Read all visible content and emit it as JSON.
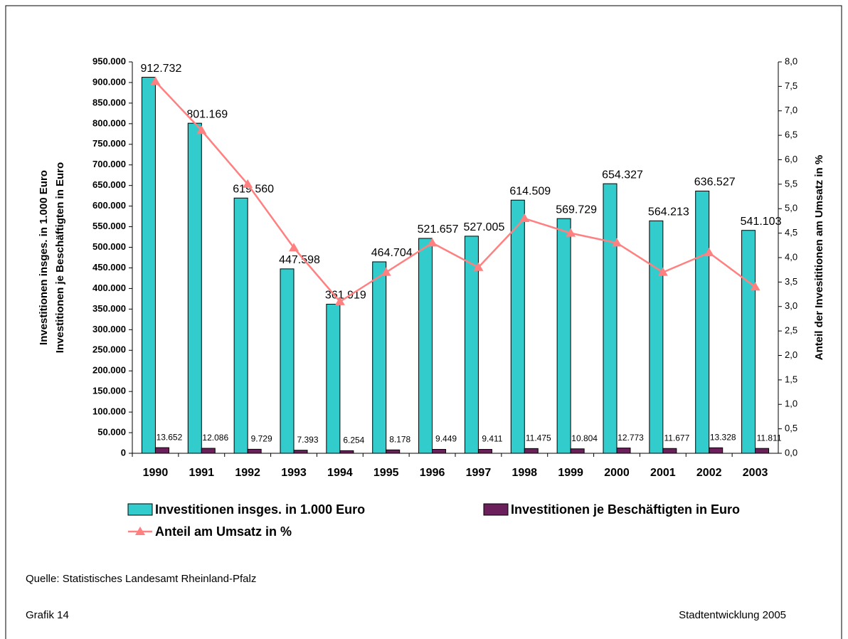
{
  "chart_data": {
    "type": "bar",
    "categories": [
      "1990",
      "1991",
      "1992",
      "1993",
      "1994",
      "1995",
      "1996",
      "1997",
      "1998",
      "1999",
      "2000",
      "2001",
      "2002",
      "2003"
    ],
    "series": [
      {
        "name": "Investitionen insges. in 1.000 Euro",
        "color": "#33cccc",
        "type": "bar",
        "values": [
          912732,
          801169,
          619560,
          447598,
          361919,
          464704,
          521657,
          527005,
          614509,
          569729,
          654327,
          564213,
          636527,
          541103
        ],
        "value_labels": [
          "912.732",
          "801.169",
          "619.560",
          "447.598",
          "361.919",
          "464.704",
          "521.657",
          "527.005",
          "614.509",
          "569.729",
          "654.327",
          "564.213",
          "636.527",
          "541.103"
        ]
      },
      {
        "name": "Investitionen je Beschäftigten in Euro",
        "color": "#6b1f5b",
        "type": "bar",
        "values": [
          13652,
          12086,
          9729,
          7393,
          6254,
          8178,
          9449,
          9411,
          11475,
          10804,
          12773,
          11677,
          13328,
          11811
        ],
        "value_labels": [
          "13.652",
          "12.086",
          "9.729",
          "7.393",
          "6.254",
          "8.178",
          "9.449",
          "9.411",
          "11.475",
          "10.804",
          "12.773",
          "11.677",
          "13.328",
          "11.811"
        ]
      },
      {
        "name": "Anteil am Umsatz in %",
        "color": "#ff8080",
        "type": "line",
        "axis": "y2",
        "values": [
          7.6,
          6.6,
          5.5,
          4.2,
          3.1,
          3.7,
          4.3,
          3.8,
          4.8,
          4.5,
          4.3,
          3.7,
          4.1,
          3.4
        ]
      }
    ],
    "y_label": [
      "Investitionen insges. in 1.000 Euro",
      "Investitionen je Beschäftigten in Euro"
    ],
    "y2_label": "Anteil der Invesititionen am Umsatz in %",
    "ylim": [
      0,
      950000
    ],
    "yticks": [
      0,
      {
        "value": 50000,
        "label": "50.000"
      },
      {
        "value": 100000,
        "label": "100.000"
      },
      {
        "value": 150000,
        "label": "150.000"
      },
      {
        "value": 200000,
        "label": "200.000"
      },
      {
        "value": 250000,
        "label": "250.000"
      },
      {
        "value": 300000,
        "label": "300.000"
      },
      {
        "value": 350000,
        "label": "350.000"
      },
      {
        "value": 400000,
        "label": "400.000"
      },
      {
        "value": 450000,
        "label": "450.000"
      },
      {
        "value": 500000,
        "label": "500.000"
      },
      {
        "value": 550000,
        "label": "550.000"
      },
      {
        "value": 600000,
        "label": "600.000"
      },
      {
        "value": 650000,
        "label": "650.000"
      },
      {
        "value": 700000,
        "label": "700.000"
      },
      {
        "value": 750000,
        "label": "750.000"
      },
      {
        "value": 800000,
        "label": "800.000"
      },
      {
        "value": 850000,
        "label": "850.000"
      },
      {
        "value": 900000,
        "label": "900.000"
      },
      {
        "value": 950000,
        "label": "950.000"
      }
    ],
    "y2lim": [
      0,
      8
    ],
    "y2ticks": [
      {
        "value": 0,
        "label": "0,0"
      },
      {
        "value": 0.5,
        "label": "0,5"
      },
      {
        "value": 1,
        "label": "1,0"
      },
      {
        "value": 1.5,
        "label": "1,5"
      },
      {
        "value": 2,
        "label": "2,0"
      },
      {
        "value": 2.5,
        "label": "2,5"
      },
      {
        "value": 3,
        "label": "3,0"
      },
      {
        "value": 3.5,
        "label": "3,5"
      },
      {
        "value": 4,
        "label": "4,0"
      },
      {
        "value": 4.5,
        "label": "4,5"
      },
      {
        "value": 5,
        "label": "5,0"
      },
      {
        "value": 5.5,
        "label": "5,5"
      },
      {
        "value": 6,
        "label": "6,0"
      },
      {
        "value": 6.5,
        "label": "6,5"
      },
      {
        "value": 7,
        "label": "7,0"
      },
      {
        "value": 7.5,
        "label": "7,5"
      },
      {
        "value": 8,
        "label": "8,0"
      }
    ],
    "source": "Quelle: Statistisches Landesamt Rheinland-Pfalz",
    "footer_left": "Grafik 14",
    "footer_right": "Stadtentwicklung 2005"
  }
}
